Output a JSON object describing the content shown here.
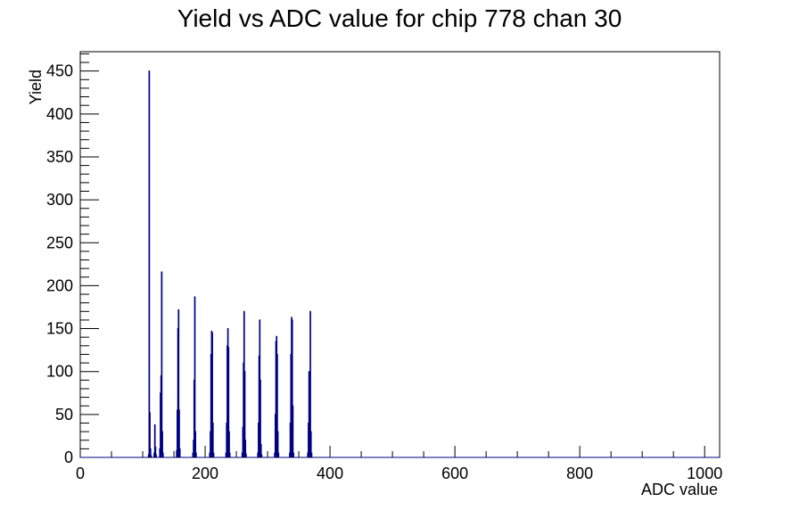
{
  "chart_data": {
    "type": "histogram",
    "title": "Yield vs ADC value for chip 778 chan 30",
    "xlabel": "ADC value",
    "ylabel": "Yield",
    "bins": [
      0,
      109,
      110,
      111,
      112,
      113,
      114,
      118,
      119,
      120,
      121,
      122,
      127,
      128,
      129,
      130,
      131,
      132,
      133,
      154,
      155,
      156,
      157,
      158,
      159,
      160,
      180,
      181,
      182,
      183,
      184,
      185,
      186,
      207,
      208,
      209,
      210,
      211,
      212,
      213,
      214,
      233,
      234,
      235,
      236,
      237,
      238,
      239,
      240,
      259,
      260,
      261,
      262,
      263,
      264,
      265,
      266,
      284,
      285,
      286,
      287,
      288,
      289,
      290,
      291,
      311,
      312,
      313,
      314,
      315,
      316,
      317,
      318,
      335,
      336,
      337,
      338,
      339,
      340,
      341,
      342,
      364,
      365,
      366,
      367,
      368,
      369,
      370,
      371,
      1024
    ],
    "counts": [
      0,
      3,
      450,
      52,
      10,
      2,
      0,
      5,
      38,
      12,
      3,
      0,
      10,
      75,
      95,
      216,
      30,
      5,
      0,
      8,
      55,
      150,
      172,
      55,
      10,
      0,
      5,
      20,
      90,
      187,
      30,
      5,
      0,
      5,
      30,
      120,
      147,
      145,
      40,
      5,
      0,
      5,
      40,
      130,
      150,
      128,
      30,
      5,
      0,
      5,
      35,
      110,
      170,
      100,
      20,
      4,
      0,
      5,
      40,
      118,
      160,
      90,
      15,
      3,
      0,
      5,
      50,
      135,
      141,
      120,
      30,
      5,
      0,
      5,
      40,
      120,
      163,
      160,
      60,
      5,
      0,
      5,
      40,
      100,
      75,
      170,
      30,
      5,
      0
    ],
    "color": "#000080",
    "xlim": [
      0,
      1024
    ],
    "xticks": [
      0,
      200,
      400,
      600,
      800,
      1000
    ],
    "ylim": [
      0,
      472.5
    ],
    "yticks": [
      0,
      50,
      100,
      150,
      200,
      250,
      300,
      350,
      400,
      450
    ]
  }
}
